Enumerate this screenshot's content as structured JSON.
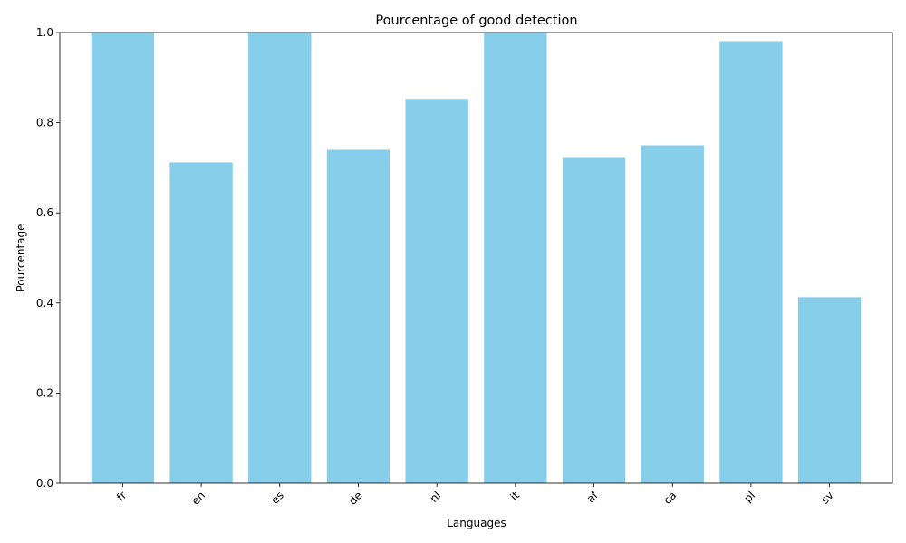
{
  "chart_data": {
    "type": "bar",
    "title": "Pourcentage of good detection",
    "xlabel": "Languages",
    "ylabel": "Pourcentage",
    "categories": [
      "fr",
      "en",
      "es",
      "de",
      "nl",
      "it",
      "af",
      "ca",
      "pl",
      "sv"
    ],
    "values": [
      1.0,
      0.712,
      1.0,
      0.74,
      0.853,
      1.0,
      0.722,
      0.75,
      0.981,
      0.413
    ],
    "ylim": [
      0,
      1.0
    ],
    "yticks": [
      "0.0",
      "0.2",
      "0.4",
      "0.6",
      "0.8",
      "1.0"
    ],
    "grid": false,
    "bar_color": "#87CEEB"
  }
}
